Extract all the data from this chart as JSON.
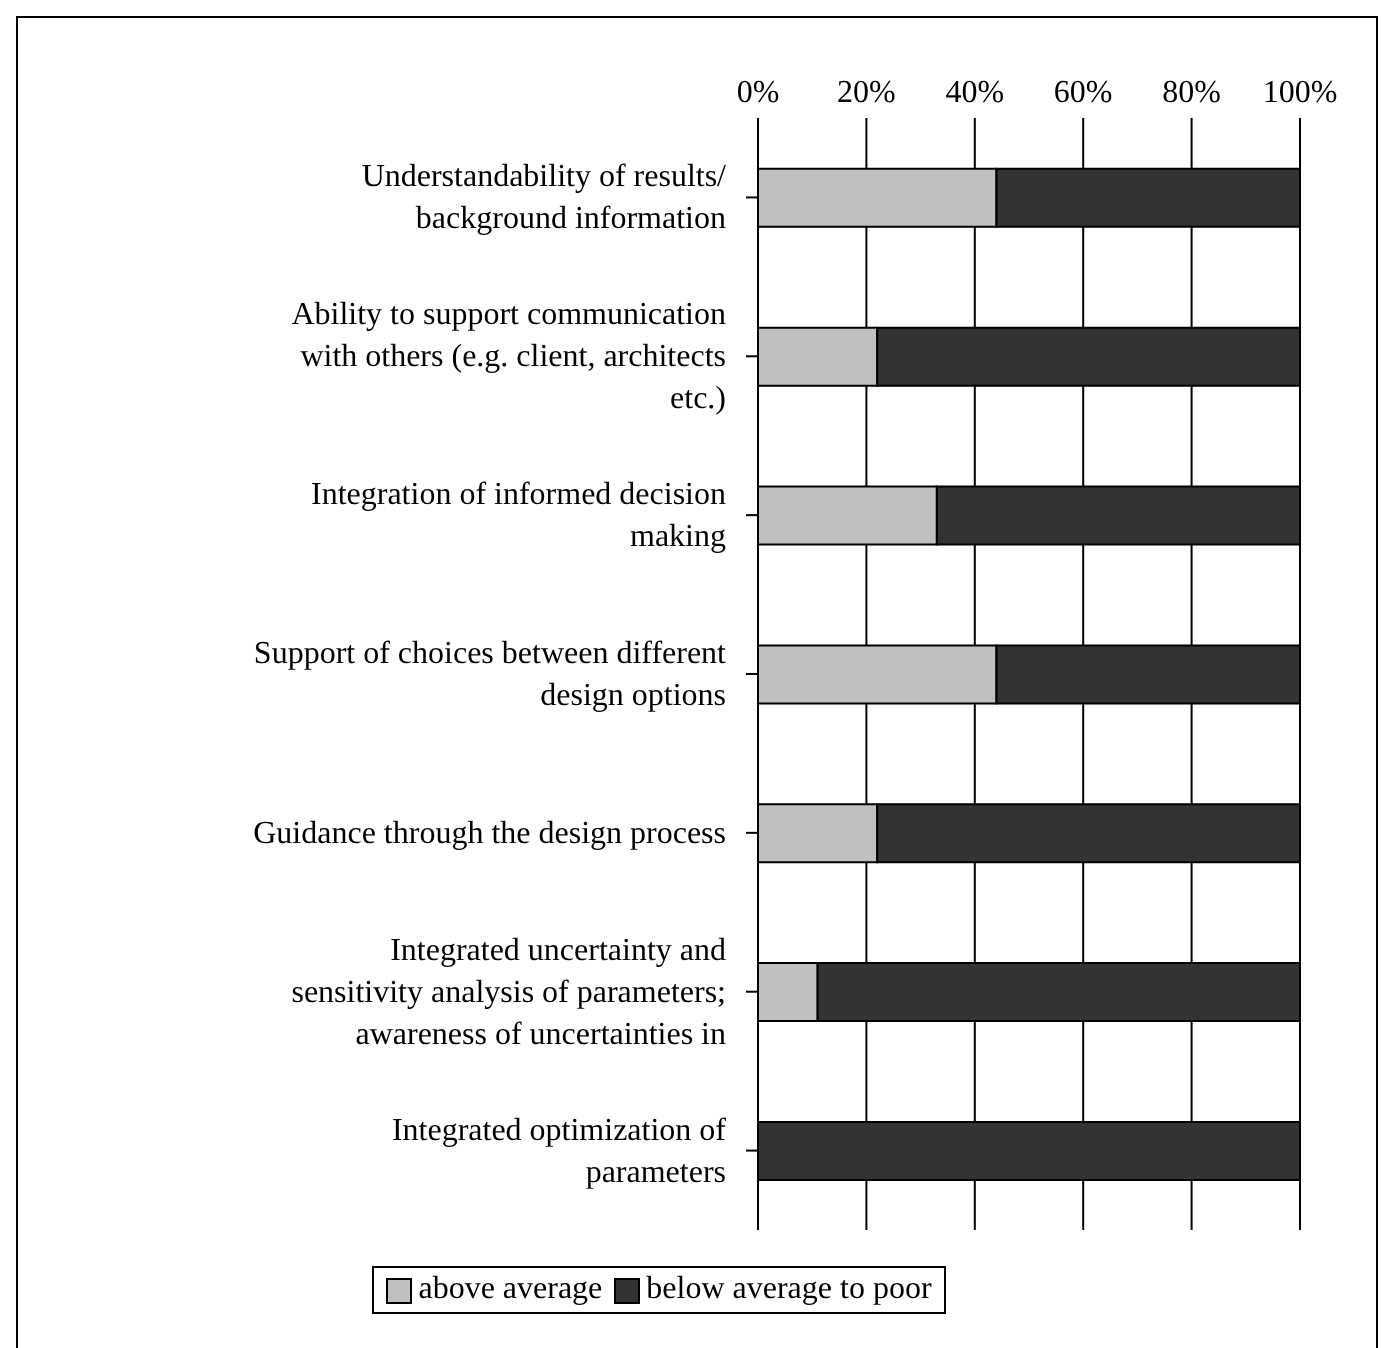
{
  "chart_data": {
    "type": "bar",
    "orientation": "horizontal",
    "stacked": true,
    "categories": [
      "Understandability of results/ background information",
      "Ability to support communication with others (e.g. client, architects etc.)",
      "Integration of informed decision making",
      "Support of choices between different design options",
      "Guidance through the design process",
      "Integrated uncertainty and sensitivity analysis of parameters; awareness of uncertainties in",
      "Integrated optimization of parameters"
    ],
    "series": [
      {
        "name": "above average",
        "color": "#c0c0c0",
        "values": [
          44,
          22,
          33,
          44,
          22,
          11,
          0
        ]
      },
      {
        "name": "below average to poor",
        "color": "#333333",
        "values": [
          56,
          78,
          67,
          56,
          78,
          89,
          100
        ]
      }
    ],
    "xlim": [
      0,
      100
    ],
    "xticks": [
      {
        "value": 0,
        "label": "0%"
      },
      {
        "value": 20,
        "label": "20%"
      },
      {
        "value": 40,
        "label": "40%"
      },
      {
        "value": 60,
        "label": "60%"
      },
      {
        "value": 80,
        "label": "80%"
      },
      {
        "value": 100,
        "label": "100%"
      }
    ],
    "grid": "x",
    "legend": "bottom"
  }
}
